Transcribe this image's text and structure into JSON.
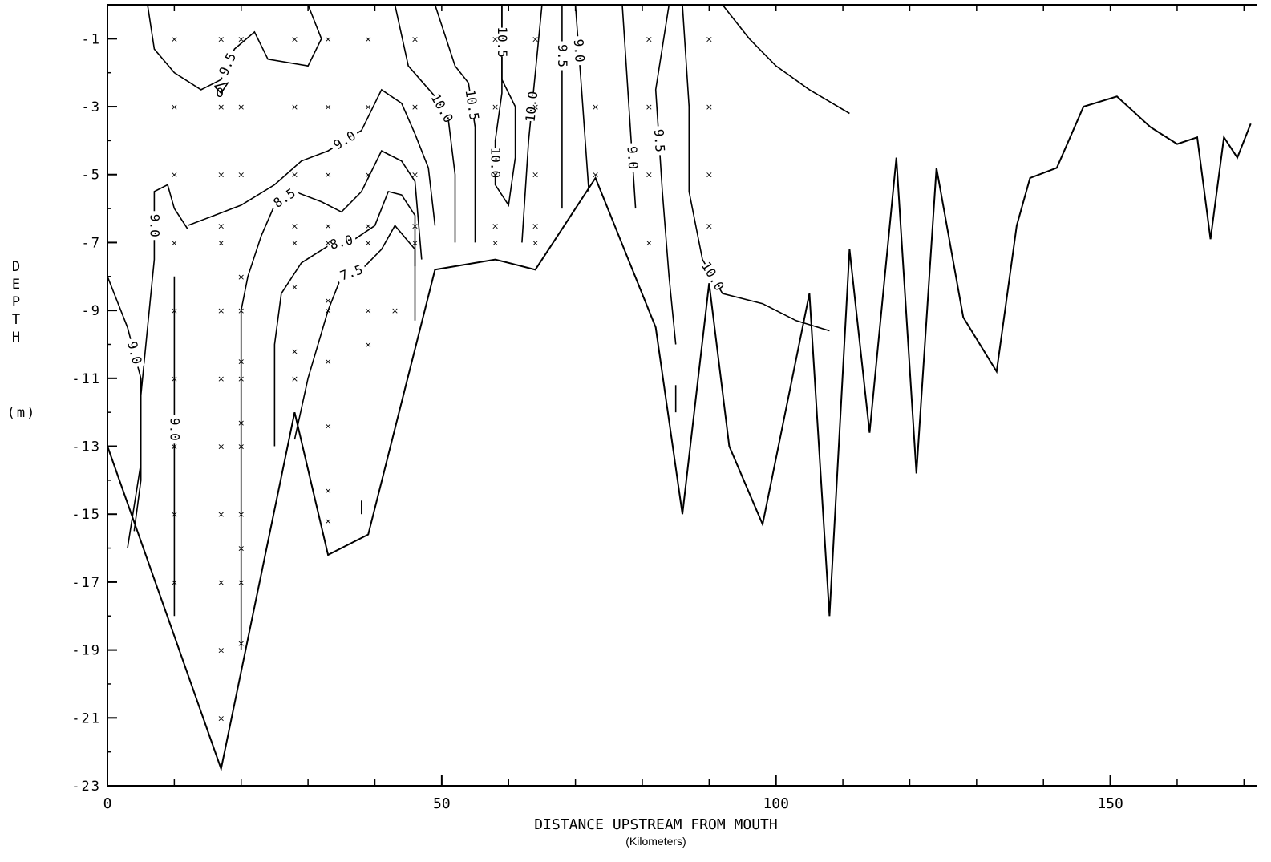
{
  "chart_data": {
    "type": "contour",
    "xlabel": "DISTANCE UPSTREAM FROM MOUTH",
    "xunits": "(Kilometers)",
    "ylabel": "DEPTH",
    "yunits": "(m)",
    "xlim": [
      0,
      172
    ],
    "ylim": [
      -23,
      0
    ],
    "xticks": [
      0,
      50,
      100,
      150
    ],
    "yticks": [
      -1,
      -3,
      -5,
      -7,
      -9,
      -11,
      -13,
      -15,
      -17,
      -19,
      -21,
      -23
    ],
    "ytick_labels": [
      "-1",
      "-3",
      "-5",
      "-7",
      "-9",
      "-11",
      "-13",
      "-15",
      "-17",
      "-19",
      "-21",
      "-23"
    ],
    "bottom_profile": [
      [
        0,
        -13
      ],
      [
        17,
        -22.5
      ],
      [
        28,
        -12
      ],
      [
        33,
        -16.2
      ],
      [
        39,
        -15.6
      ],
      [
        49,
        -7.8
      ],
      [
        58,
        -7.5
      ],
      [
        64,
        -7.8
      ],
      [
        73,
        -5.1
      ],
      [
        82,
        -9.5
      ],
      [
        86,
        -15
      ],
      [
        90,
        -8.2
      ],
      [
        93,
        -13
      ],
      [
        98,
        -15.3
      ],
      [
        105,
        -8.5
      ],
      [
        108,
        -18
      ],
      [
        111,
        -7.2
      ],
      [
        114,
        -12.6
      ],
      [
        118,
        -4.5
      ],
      [
        121,
        -13.8
      ],
      [
        124,
        -4.8
      ],
      [
        128,
        -9.2
      ],
      [
        133,
        -10.8
      ],
      [
        136,
        -6.5
      ],
      [
        138,
        -5.1
      ],
      [
        142,
        -4.8
      ],
      [
        146,
        -3
      ],
      [
        151,
        -2.7
      ],
      [
        156,
        -3.6
      ],
      [
        160,
        -4.1
      ],
      [
        163,
        -3.9
      ],
      [
        165,
        -6.9
      ],
      [
        167,
        -3.9
      ],
      [
        169,
        -4.5
      ],
      [
        171,
        -3.5
      ]
    ],
    "sample_points": [
      [
        10,
        -1
      ],
      [
        17,
        -1
      ],
      [
        20,
        -1
      ],
      [
        28,
        -1
      ],
      [
        33,
        -1
      ],
      [
        39,
        -1
      ],
      [
        46,
        -1
      ],
      [
        58,
        -1
      ],
      [
        64,
        -1
      ],
      [
        81,
        -1
      ],
      [
        90,
        -1
      ],
      [
        10,
        -3
      ],
      [
        17,
        -3
      ],
      [
        20,
        -3
      ],
      [
        28,
        -3
      ],
      [
        33,
        -3
      ],
      [
        39,
        -3
      ],
      [
        46,
        -3
      ],
      [
        58,
        -3
      ],
      [
        64,
        -3
      ],
      [
        73,
        -3
      ],
      [
        81,
        -3
      ],
      [
        90,
        -3
      ],
      [
        10,
        -5
      ],
      [
        17,
        -5
      ],
      [
        20,
        -5
      ],
      [
        28,
        -5
      ],
      [
        33,
        -5
      ],
      [
        39,
        -5
      ],
      [
        46,
        -5
      ],
      [
        58,
        -5
      ],
      [
        64,
        -5
      ],
      [
        73,
        -5
      ],
      [
        81,
        -5
      ],
      [
        90,
        -5
      ],
      [
        17,
        -6.5
      ],
      [
        28,
        -6.5
      ],
      [
        33,
        -6.5
      ],
      [
        39,
        -6.5
      ],
      [
        46,
        -6.5
      ],
      [
        58,
        -6.5
      ],
      [
        64,
        -6.5
      ],
      [
        90,
        -6.5
      ],
      [
        10,
        -7
      ],
      [
        17,
        -7
      ],
      [
        28,
        -7
      ],
      [
        33,
        -7
      ],
      [
        39,
        -7
      ],
      [
        46,
        -7
      ],
      [
        58,
        -7
      ],
      [
        64,
        -7
      ],
      [
        81,
        -7
      ],
      [
        20,
        -8
      ],
      [
        28,
        -8.3
      ],
      [
        33,
        -8.7
      ],
      [
        39,
        -9
      ],
      [
        43,
        -9
      ],
      [
        10,
        -9
      ],
      [
        17,
        -9
      ],
      [
        20,
        -9
      ],
      [
        33,
        -9
      ],
      [
        39,
        -10
      ],
      [
        20,
        -10.5
      ],
      [
        28,
        -10.2
      ],
      [
        33,
        -10.5
      ],
      [
        10,
        -11
      ],
      [
        17,
        -11
      ],
      [
        20,
        -11
      ],
      [
        28,
        -11
      ],
      [
        20,
        -12.3
      ],
      [
        33,
        -12.4
      ],
      [
        10,
        -13
      ],
      [
        17,
        -13
      ],
      [
        20,
        -13
      ],
      [
        33,
        -14.3
      ],
      [
        10,
        -15
      ],
      [
        17,
        -15
      ],
      [
        20,
        -15
      ],
      [
        33,
        -15.2
      ],
      [
        20,
        -16
      ],
      [
        10,
        -17
      ],
      [
        17,
        -17
      ],
      [
        20,
        -17
      ],
      [
        20,
        -18.8
      ],
      [
        17,
        -19
      ],
      [
        17,
        -21
      ]
    ],
    "contours": [
      {
        "label": "9.5",
        "points": [
          [
            6,
            0
          ],
          [
            7,
            -1.3
          ],
          [
            10,
            -2
          ],
          [
            14,
            -2.5
          ],
          [
            17,
            -2.2
          ],
          [
            19,
            -1.3
          ],
          [
            22,
            -0.8
          ],
          [
            24,
            -1.6
          ],
          [
            30,
            -1.8
          ],
          [
            32,
            -1
          ],
          [
            30,
            0
          ]
        ]
      },
      {
        "label": "O",
        "points": [
          [
            16,
            -2.4
          ],
          [
            17,
            -2.6
          ],
          [
            18,
            -2.3
          ],
          [
            16,
            -2.4
          ]
        ]
      },
      {
        "label": "9.0",
        "points": [
          [
            12,
            -6.6
          ],
          [
            10,
            -6
          ],
          [
            9,
            -5.3
          ],
          [
            7,
            -5.5
          ],
          [
            7,
            -7.5
          ],
          [
            6,
            -9.5
          ],
          [
            5,
            -11.5
          ],
          [
            5,
            -13.5
          ],
          [
            3,
            -16
          ]
        ]
      },
      {
        "label": "9.0",
        "points": [
          [
            0,
            -8
          ],
          [
            3,
            -9.5
          ],
          [
            5,
            -11
          ],
          [
            5,
            -14
          ],
          [
            4,
            -15.5
          ]
        ]
      },
      {
        "label": "9.0",
        "points": [
          [
            10,
            -8
          ],
          [
            10,
            -11
          ],
          [
            10,
            -14
          ],
          [
            10,
            -18
          ]
        ]
      },
      {
        "label": "9.0",
        "points": [
          [
            12,
            -6.5
          ],
          [
            16,
            -6.2
          ],
          [
            20,
            -5.9
          ],
          [
            25,
            -5.3
          ],
          [
            29,
            -4.6
          ],
          [
            33,
            -4.3
          ],
          [
            38,
            -3.7
          ],
          [
            41,
            -2.5
          ],
          [
            44,
            -2.9
          ],
          [
            46,
            -3.8
          ],
          [
            48,
            -4.8
          ],
          [
            49,
            -6.5
          ]
        ]
      },
      {
        "label": "8.5",
        "points": [
          [
            20,
            -19
          ],
          [
            20,
            -16
          ],
          [
            20,
            -12
          ],
          [
            20,
            -9
          ],
          [
            21,
            -8
          ],
          [
            23,
            -6.8
          ],
          [
            25,
            -5.9
          ],
          [
            28,
            -5.5
          ],
          [
            32,
            -5.8
          ],
          [
            35,
            -6.1
          ],
          [
            38,
            -5.5
          ],
          [
            41,
            -4.3
          ],
          [
            44,
            -4.6
          ],
          [
            46,
            -5.2
          ],
          [
            47,
            -7.5
          ]
        ]
      },
      {
        "label": "8.0",
        "points": [
          [
            25,
            -13
          ],
          [
            25,
            -10
          ],
          [
            26,
            -8.5
          ],
          [
            29,
            -7.6
          ],
          [
            33,
            -7.1
          ],
          [
            37,
            -6.9
          ],
          [
            40,
            -6.5
          ],
          [
            42,
            -5.5
          ],
          [
            44,
            -5.6
          ],
          [
            46,
            -6.2
          ],
          [
            46,
            -7.7
          ]
        ]
      },
      {
        "label": "7.5",
        "points": [
          [
            28,
            -12.8
          ],
          [
            30,
            -11
          ],
          [
            33,
            -9
          ],
          [
            35,
            -8
          ],
          [
            38,
            -7.8
          ],
          [
            41,
            -7.2
          ],
          [
            43,
            -6.5
          ],
          [
            46,
            -7.2
          ],
          [
            46,
            -9.3
          ]
        ]
      },
      {
        "label": "10.0",
        "points": [
          [
            43,
            0
          ],
          [
            45,
            -1.8
          ],
          [
            49,
            -2.7
          ],
          [
            51,
            -3.4
          ],
          [
            52,
            -5
          ],
          [
            52,
            -7
          ]
        ]
      },
      {
        "label": "10.5",
        "points": [
          [
            49,
            0
          ],
          [
            52,
            -1.8
          ],
          [
            54,
            -2.3
          ],
          [
            55,
            -3.6
          ],
          [
            55,
            -5.5
          ],
          [
            55,
            -7
          ]
        ]
      },
      {
        "label": "10.0",
        "points": [
          [
            59,
            0
          ],
          [
            59,
            -1.5
          ],
          [
            59,
            -2.6
          ],
          [
            58,
            -4
          ],
          [
            58,
            -5.3
          ],
          [
            60,
            -5.9
          ],
          [
            61,
            -4.5
          ],
          [
            61,
            -3
          ]
        ]
      },
      {
        "label": "10.5",
        "points": [
          [
            59,
            0
          ],
          [
            59,
            -2.2
          ],
          [
            61,
            -3
          ]
        ]
      },
      {
        "label": "10.0",
        "points": [
          [
            62,
            -7
          ],
          [
            63,
            -4
          ],
          [
            64,
            -2
          ],
          [
            65,
            0
          ]
        ]
      },
      {
        "label": "9.5",
        "points": [
          [
            68,
            0
          ],
          [
            68,
            -3
          ],
          [
            68,
            -6
          ]
        ]
      },
      {
        "label": "9.0",
        "points": [
          [
            70,
            0
          ],
          [
            71,
            -2.7
          ],
          [
            72,
            -5.5
          ]
        ]
      },
      {
        "label": "9.0",
        "points": [
          [
            79,
            -6
          ],
          [
            78,
            -3
          ],
          [
            77,
            0
          ]
        ]
      },
      {
        "label": "9.5",
        "points": [
          [
            84,
            0
          ],
          [
            82,
            -2.5
          ],
          [
            83,
            -5.5
          ],
          [
            84,
            -8
          ],
          [
            85,
            -10
          ]
        ]
      },
      {
        "label": "10.0",
        "points": [
          [
            86,
            0
          ],
          [
            87,
            -3
          ],
          [
            87,
            -5.5
          ],
          [
            89,
            -7.5
          ],
          [
            92,
            -8.5
          ],
          [
            98,
            -8.8
          ],
          [
            103,
            -9.3
          ],
          [
            108,
            -9.6
          ]
        ]
      },
      {
        "label": "",
        "points": [
          [
            92,
            0
          ],
          [
            96,
            -1
          ],
          [
            100,
            -1.8
          ],
          [
            105,
            -2.5
          ],
          [
            111,
            -3.2
          ]
        ]
      }
    ],
    "isolated_ticks": [
      [
        85,
        -11.2,
        85,
        -12
      ],
      [
        38,
        -14.6,
        38,
        -15
      ]
    ]
  }
}
